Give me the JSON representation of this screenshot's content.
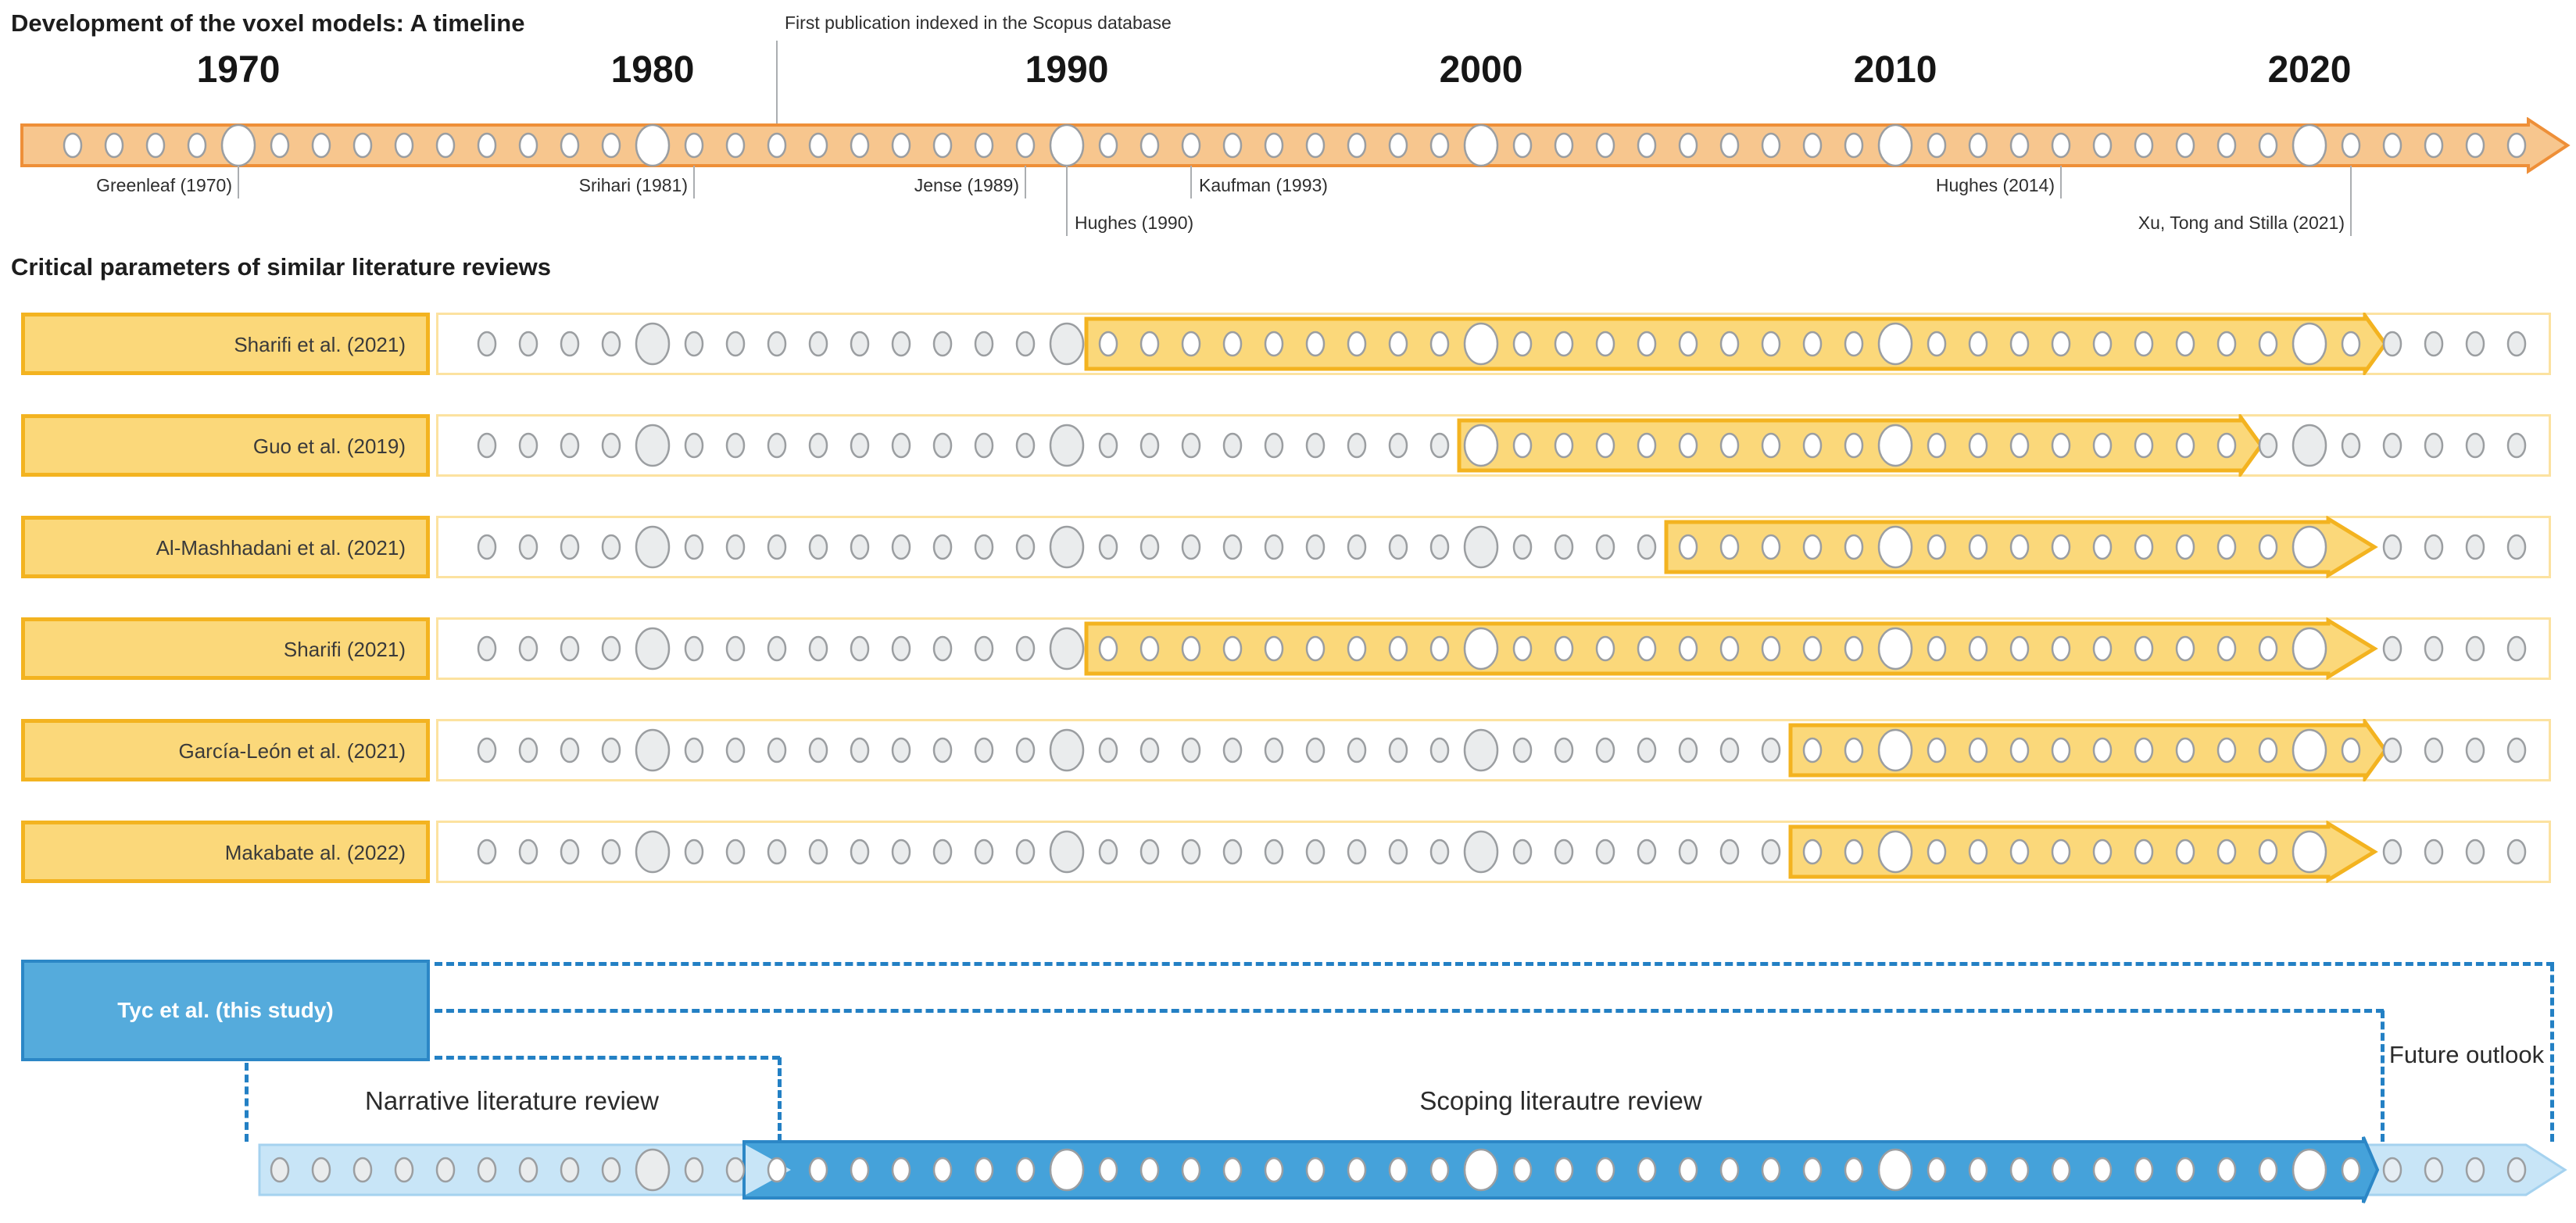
{
  "header": {
    "title": "Development of the voxel models: A timeline",
    "scopus_annotation": "First publication indexed in the Scopus database",
    "scopus_year": 1983
  },
  "timeline": {
    "year_labels": [
      "1970",
      "1980",
      "1990",
      "2000",
      "2010",
      "2020"
    ],
    "decades": [
      1970,
      1980,
      1990,
      2000,
      2010,
      2020
    ],
    "dot_range": {
      "start": 1966,
      "end": 2025
    },
    "publications": [
      {
        "label": "Greenleaf (1970)",
        "year": 1970,
        "side": "left",
        "level": 1
      },
      {
        "label": "Srihari (1981)",
        "year": 1981,
        "side": "left",
        "level": 1
      },
      {
        "label": "Jense (1989)",
        "year": 1989,
        "side": "left",
        "level": 1
      },
      {
        "label": "Hughes (1990)",
        "year": 1990,
        "side": "right",
        "level": 2
      },
      {
        "label": "Kaufman (1993)",
        "year": 1993,
        "side": "right",
        "level": 1
      },
      {
        "label": "Hughes (2014)",
        "year": 2014,
        "side": "left",
        "level": 1
      },
      {
        "label": "Xu, Tong and Stilla (2021)",
        "year": 2021,
        "side": "left",
        "level": 2
      }
    ]
  },
  "reviews": {
    "heading": "Critical parameters of similar literature reviews",
    "dot_range": {
      "start": 1976,
      "end": 2025
    },
    "rows": [
      {
        "label": "Sharifi et al. (2021)",
        "covered_start": 1991,
        "covered_end": 2021,
        "tip_hides_next_dot": false
      },
      {
        "label": "Guo et al. (2019)",
        "covered_start": 2000,
        "covered_end": 2018,
        "tip_hides_next_dot": false
      },
      {
        "label": "Al-Mashhadani et al. (2021)",
        "covered_start": 2005,
        "covered_end": 2020,
        "tip_hides_next_dot": true
      },
      {
        "label": "Sharifi (2021)",
        "covered_start": 1991,
        "covered_end": 2020,
        "tip_hides_next_dot": true
      },
      {
        "label": "García-León et al. (2021)",
        "covered_start": 2008,
        "covered_end": 2021,
        "tip_hides_next_dot": false
      },
      {
        "label": "Makabate al. (2022)",
        "covered_start": 2008,
        "covered_end": 2020,
        "tip_hides_next_dot": true
      }
    ]
  },
  "this_study": {
    "label": "Tyc et al. (this study)",
    "dot_range": {
      "start": 1971,
      "end": 2025
    },
    "phases": [
      {
        "label": "Narrative literature review",
        "start_year": 1971,
        "end_year": 1982,
        "style": "light"
      },
      {
        "label": "Scoping literautre review",
        "start_year": 1983,
        "end_year": 2021,
        "style": "dark"
      },
      {
        "label": "Future outlook",
        "start_year": 2022,
        "end_year": 2025,
        "style": "light"
      }
    ]
  },
  "colors": {
    "orange_fill": "#F7C68E",
    "orange_border": "#EE8F38",
    "yellow_fill": "#FBD87A",
    "yellow_border": "#F3B320",
    "row_track_border": "#FCE2A0",
    "gray_dot_fill": "#EAECED",
    "dot_stroke": "#9B9EA1",
    "white_dot_fill": "#FFFFFF",
    "blue_box_fill": "#55ABDC",
    "blue_border": "#2C87C6",
    "dashed_blue": "#2380C4",
    "light_blue_fill": "#C8E5F7",
    "light_blue_border": "#A5D2EF",
    "dark_blue_fill": "#45A2DA",
    "trailing_dot_fill": "#E6EDF3",
    "tick_gray": "#ABAEB1"
  }
}
